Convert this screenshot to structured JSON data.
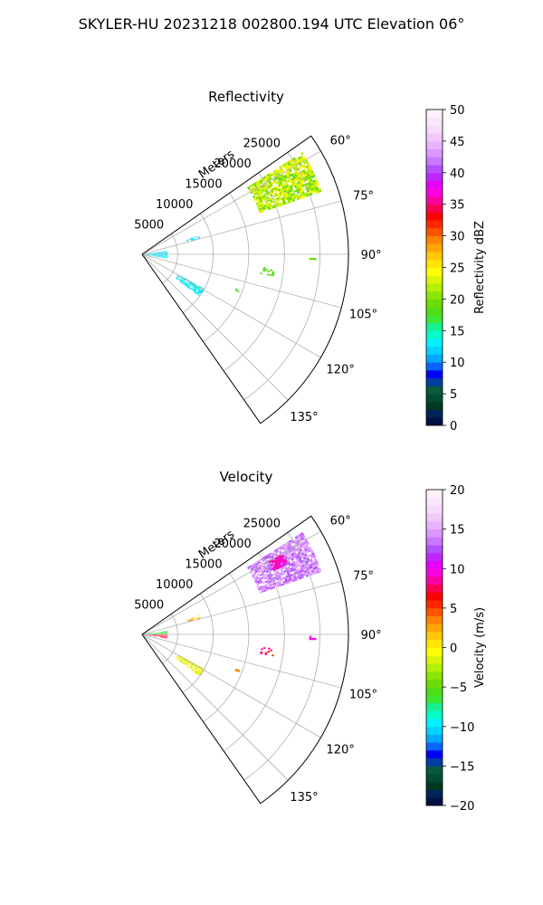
{
  "figure": {
    "title": "SKYLER-HU  20231218  002800.194 UTC Elevation 06°"
  },
  "chart_data": [
    {
      "type": "heatmap",
      "projection": "polar-sector",
      "title": "Reflectivity",
      "radial_label": "Meters",
      "radial_ticks": [
        5000,
        10000,
        15000,
        20000,
        25000
      ],
      "radial_tick_labels": [
        "5000",
        "10000",
        "15000",
        "20000",
        "25000"
      ],
      "r_max": 29000,
      "azimuth_range": [
        55,
        145
      ],
      "azimuth_ticks": [
        60,
        75,
        90,
        105,
        120,
        135
      ],
      "azimuth_tick_labels": [
        "60°",
        "75°",
        "90°",
        "105°",
        "120°",
        "135°"
      ],
      "grid": true,
      "colorbar": {
        "label": "Reflectivity dBZ",
        "min": 0,
        "max": 50,
        "ticks": [
          0,
          5,
          10,
          15,
          20,
          25,
          30,
          35,
          40,
          45,
          50
        ],
        "tick_labels": [
          "0",
          "5",
          "10",
          "15",
          "20",
          "25",
          "30",
          "35",
          "40",
          "45",
          "50"
        ],
        "colors": [
          "#011040",
          "#02225a",
          "#023a1f",
          "#004d32",
          "#0a5a40",
          "#003ea0",
          "#0000ff",
          "#0a64ff",
          "#00a8ff",
          "#00d2ff",
          "#00f0ff",
          "#00ffc8",
          "#19f090",
          "#3ce632",
          "#52dc14",
          "#6edc00",
          "#8ce600",
          "#b4f000",
          "#dcf500",
          "#ffff00",
          "#ffe600",
          "#ffc800",
          "#ffa500",
          "#ff8200",
          "#ff5500",
          "#ff2800",
          "#ff0000",
          "#ff0050",
          "#ff00a0",
          "#ff00dc",
          "#e600ff",
          "#be28ff",
          "#b450ff",
          "#c878ff",
          "#dc96ff",
          "#e6b4ff",
          "#f0c8fa",
          "#f5dcfa",
          "#fae6fa",
          "#fff0fa"
        ]
      },
      "echo_regions": [
        {
          "name": "storm-cell-ne",
          "az": [
            57.5,
            70.5
          ],
          "r": [
            17500,
            26500
          ],
          "value": 22,
          "spread": 4,
          "density": 0.85
        },
        {
          "name": "near-field-east",
          "az": [
            82,
            99
          ],
          "r": [
            300,
            3600
          ],
          "value": 13,
          "spread": 1.5,
          "density": 0.75
        },
        {
          "name": "near-field-ne",
          "az": [
            71.5,
            74.5
          ],
          "r": [
            6500,
            8200
          ],
          "value": 12,
          "spread": 1.5,
          "density": 0.5
        },
        {
          "name": "band-se",
          "az": [
            119,
            125.5
          ],
          "r": [
            5800,
            9800
          ],
          "value": 13,
          "spread": 1.5,
          "density": 0.7
        },
        {
          "name": "speckle-1",
          "az": [
            96,
            99
          ],
          "r": [
            16800,
            18500
          ],
          "value": 18,
          "spread": 1.5,
          "density": 0.35
        },
        {
          "name": "speckle-2",
          "az": [
            90.5,
            91.5
          ],
          "r": [
            23500,
            24200
          ],
          "value": 18,
          "spread": 1.5,
          "density": 0.6
        },
        {
          "name": "speckle-3",
          "az": [
            110,
            111
          ],
          "r": [
            14000,
            14500
          ],
          "value": 18,
          "spread": 1.5,
          "density": 0.6
        }
      ]
    },
    {
      "type": "heatmap",
      "projection": "polar-sector",
      "title": "Velocity",
      "radial_label": "Meters",
      "radial_ticks": [
        5000,
        10000,
        15000,
        20000,
        25000
      ],
      "radial_tick_labels": [
        "5000",
        "10000",
        "15000",
        "20000",
        "25000"
      ],
      "r_max": 29000,
      "azimuth_range": [
        55,
        145
      ],
      "azimuth_ticks": [
        60,
        75,
        90,
        105,
        120,
        135
      ],
      "azimuth_tick_labels": [
        "60°",
        "75°",
        "90°",
        "105°",
        "120°",
        "135°"
      ],
      "grid": true,
      "colorbar": {
        "label": "Velocity (m/s)",
        "min": -20,
        "max": 20,
        "ticks": [
          -20,
          -15,
          -10,
          -5,
          0,
          5,
          10,
          15,
          20
        ],
        "tick_labels": [
          "−20",
          "−15",
          "−10",
          "−5",
          "0",
          "5",
          "10",
          "15",
          "20"
        ],
        "colors": [
          "#011040",
          "#02225a",
          "#023a1f",
          "#004d32",
          "#0a5a40",
          "#003ea0",
          "#0000ff",
          "#0a64ff",
          "#00a8ff",
          "#00d2ff",
          "#00f0ff",
          "#00ffc8",
          "#19f090",
          "#3ce632",
          "#52dc14",
          "#6edc00",
          "#8ce600",
          "#b4f000",
          "#dcf500",
          "#ffff00",
          "#ffe600",
          "#ffc800",
          "#ffa500",
          "#ff8200",
          "#ff5500",
          "#ff2800",
          "#ff0000",
          "#ff0050",
          "#ff00a0",
          "#ff00dc",
          "#e600ff",
          "#be28ff",
          "#b450ff",
          "#c878ff",
          "#dc96ff",
          "#e6b4ff",
          "#f0c8fa",
          "#f5dcfa",
          "#fae6fa",
          "#fff0fa"
        ]
      },
      "echo_regions": [
        {
          "name": "storm-cell-ne",
          "az": [
            57.5,
            70.5
          ],
          "r": [
            17500,
            26500
          ],
          "value": 14,
          "spread": 2,
          "density": 0.85
        },
        {
          "name": "storm-core",
          "az": [
            60,
            64
          ],
          "r": [
            20500,
            22500
          ],
          "value": 9,
          "spread": 1,
          "density": 0.8
        },
        {
          "name": "near-field-north",
          "az": [
            82,
            89
          ],
          "r": [
            300,
            3400
          ],
          "value": -6,
          "spread": 2,
          "density": 0.75
        },
        {
          "name": "near-field-south",
          "az": [
            90,
            99
          ],
          "r": [
            300,
            3400
          ],
          "value": 7,
          "spread": 2,
          "density": 0.75
        },
        {
          "name": "near-field-ne",
          "az": [
            71.5,
            74.5
          ],
          "r": [
            6500,
            8200
          ],
          "value": 2,
          "spread": 2,
          "density": 0.5
        },
        {
          "name": "band-se",
          "az": [
            119,
            125.5
          ],
          "r": [
            5800,
            9800
          ],
          "value": -1,
          "spread": 2,
          "density": 0.7
        },
        {
          "name": "speckle-1",
          "az": [
            96,
            99
          ],
          "r": [
            16800,
            18500
          ],
          "value": 7,
          "spread": 2,
          "density": 0.35
        },
        {
          "name": "speckle-2",
          "az": [
            90.5,
            91.5
          ],
          "r": [
            23500,
            24200
          ],
          "value": 10,
          "spread": 1,
          "density": 0.6
        },
        {
          "name": "speckle-3",
          "az": [
            110,
            111
          ],
          "r": [
            14000,
            14500
          ],
          "value": 3,
          "spread": 1,
          "density": 0.6
        }
      ]
    }
  ]
}
